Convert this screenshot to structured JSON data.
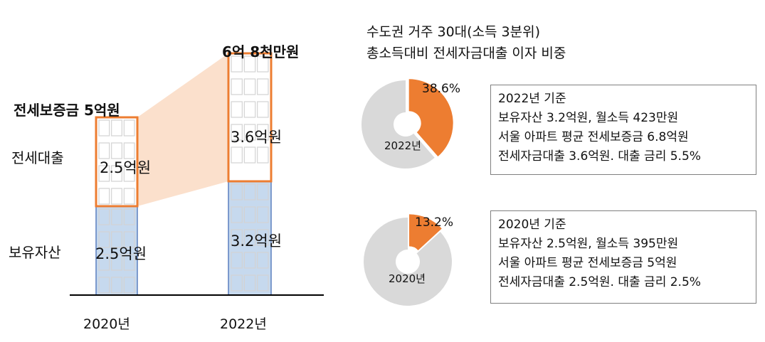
{
  "chart_data": [
    {
      "type": "bar",
      "stacked": true,
      "categories": [
        "2020년",
        "2022년"
      ],
      "series": [
        {
          "name": "보유자산",
          "values": [
            2.5,
            3.2
          ],
          "labels": [
            "2.5억원",
            "3.2억원"
          ],
          "color": "#c6d9ee"
        },
        {
          "name": "전세대출",
          "values": [
            2.5,
            3.6
          ],
          "labels": [
            "2.5억원",
            "3.6억원"
          ],
          "color": "#ffffff"
        }
      ],
      "totals": [
        "전세보증금 5억원",
        "6억 8천만원"
      ]
    },
    {
      "type": "pie",
      "title": "수도권 거주 30대(소득 3분위) 총소득대비 전세자금대출 이자 비중",
      "title_lines": [
        "수도권 거주 30대(소득 3분위)",
        "총소득대비 전세자금대출 이자 비중"
      ],
      "donuts": [
        {
          "year_label": "2022년",
          "value": 38.6,
          "value_label": "38.6%",
          "note_lines": [
            "2022년 기준",
            "보유자산 3.2억원, 월소득 423만원",
            "서울 아파트 평균 전세보증금 6.8억원",
            "전세자금대출 3.6억원. 대출 금리 5.5%"
          ]
        },
        {
          "year_label": "2020년",
          "value": 13.2,
          "value_label": "13.2%",
          "note_lines": [
            "2020년 기준",
            "보유자산 2.5억원, 월소득 395만원",
            "서울 아파트 평균 전세보증금 5억원",
            "전세자금대출 2.5억원. 대출 금리 2.5%"
          ]
        }
      ]
    }
  ],
  "colors": {
    "accent": "#ed7d31",
    "asset_fill": "#c6d9ee",
    "asset_border": "#5a7fbf",
    "funnel": "#fbe0cc",
    "donut_rest": "#d9d9d9",
    "window": "#d3d3d3",
    "axis": "#000000"
  }
}
